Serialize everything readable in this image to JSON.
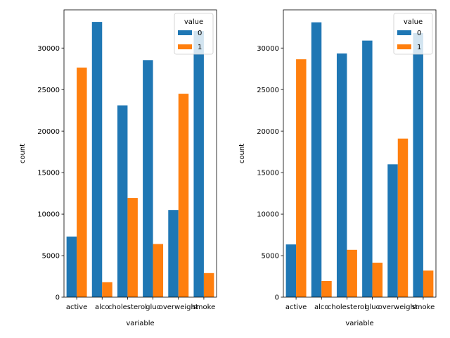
{
  "colors": {
    "series_0": "#1f77b4",
    "series_1": "#ff7f0e",
    "axis": "#000000",
    "legend_border": "#cccccc",
    "background": "#ffffff"
  },
  "chart_data": [
    {
      "type": "bar",
      "title": "",
      "xlabel": "variable",
      "ylabel": "count",
      "categories": [
        "active",
        "alco",
        "cholesterol",
        "gluc",
        "overweight",
        "smoke"
      ],
      "ylim": [
        0,
        34600
      ],
      "yticks": [
        0,
        5000,
        10000,
        15000,
        20000,
        25000,
        30000
      ],
      "grid": false,
      "legend": {
        "title": "value",
        "placement": "upper right"
      },
      "series": [
        {
          "name": "0",
          "values": [
            7300,
            33150,
            23100,
            28550,
            10500,
            32050
          ]
        },
        {
          "name": "1",
          "values": [
            27650,
            1800,
            11950,
            6400,
            24500,
            2900
          ]
        }
      ]
    },
    {
      "type": "bar",
      "title": "",
      "xlabel": "variable",
      "ylabel": "count",
      "categories": [
        "active",
        "alco",
        "cholesterol",
        "gluc",
        "overweight",
        "smoke"
      ],
      "ylim": [
        0,
        34600
      ],
      "yticks": [
        0,
        5000,
        10000,
        15000,
        20000,
        25000,
        30000
      ],
      "grid": false,
      "legend": {
        "title": "value",
        "placement": "upper right"
      },
      "series": [
        {
          "name": "0",
          "values": [
            6350,
            33100,
            29350,
            30900,
            16000,
            31800
          ]
        },
        {
          "name": "1",
          "values": [
            28650,
            1950,
            5700,
            4150,
            19100,
            3200
          ]
        }
      ]
    }
  ]
}
